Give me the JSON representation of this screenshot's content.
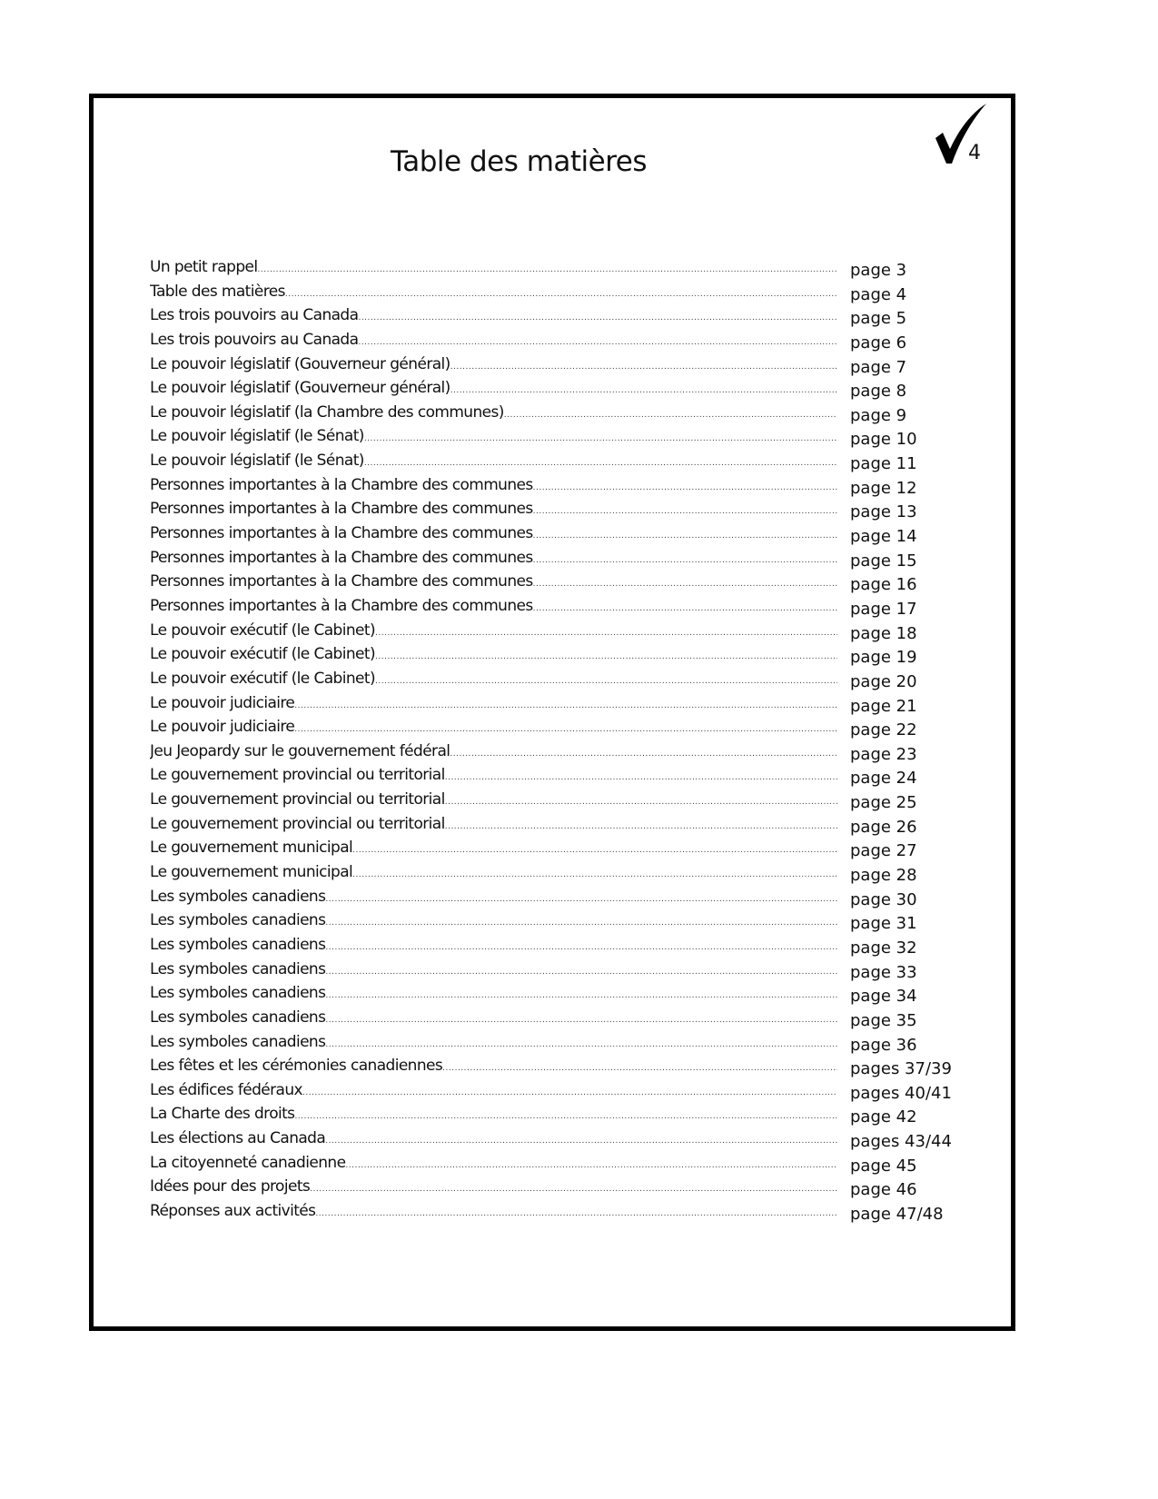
{
  "title": "Table des matières",
  "page_number": "4",
  "entries": [
    {
      "label": "Un petit rappel",
      "page": "page 3"
    },
    {
      "label": "Table des matières",
      "page": "page 4"
    },
    {
      "label": "Les trois pouvoirs au Canada",
      "page": "page 5"
    },
    {
      "label": "Les trois pouvoirs au Canada",
      "page": "page 6"
    },
    {
      "label": "Le pouvoir législatif (Gouverneur général)",
      "page": "page 7"
    },
    {
      "label": "Le pouvoir législatif (Gouverneur général)",
      "page": "page 8"
    },
    {
      "label": "Le pouvoir législatif (la Chambre des communes)",
      "page": "page 9"
    },
    {
      "label": "Le pouvoir législatif (le Sénat)",
      "page": "page 10"
    },
    {
      "label": "Le pouvoir législatif (le Sénat)",
      "page": "page 11"
    },
    {
      "label": "Personnes importantes à la Chambre des communes",
      "page": "page 12"
    },
    {
      "label": "Personnes importantes à la Chambre des communes",
      "page": "page 13"
    },
    {
      "label": "Personnes importantes à la Chambre des communes",
      "page": "page 14"
    },
    {
      "label": "Personnes importantes à la Chambre des communes",
      "page": "page 15"
    },
    {
      "label": "Personnes importantes à la Chambre des communes",
      "page": "page 16"
    },
    {
      "label": "Personnes importantes à la Chambre des communes",
      "page": "page 17"
    },
    {
      "label": "Le pouvoir exécutif (le Cabinet)",
      "page": "page 18"
    },
    {
      "label": "Le pouvoir exécutif (le Cabinet)",
      "page": "page 19"
    },
    {
      "label": "Le pouvoir exécutif (le Cabinet)",
      "page": "page 20"
    },
    {
      "label": "Le pouvoir judiciaire",
      "page": "page 21"
    },
    {
      "label": "Le pouvoir judiciaire",
      "page": "page 22"
    },
    {
      "label": "Jeu Jeopardy sur le gouvernement fédéral",
      "page": "page 23"
    },
    {
      "label": "Le gouvernement provincial ou territorial",
      "page": "page 24"
    },
    {
      "label": "Le gouvernement provincial ou territorial",
      "page": "page 25"
    },
    {
      "label": "Le gouvernement provincial ou territorial",
      "page": "page 26"
    },
    {
      "label": "Le gouvernement municipal",
      "page": "page 27"
    },
    {
      "label": "Le gouvernement municipal",
      "page": "page 28"
    },
    {
      "label": "Les symboles canadiens",
      "page": "page 30"
    },
    {
      "label": "Les symboles canadiens",
      "page": "page 31"
    },
    {
      "label": "Les symboles canadiens",
      "page": "page 32"
    },
    {
      "label": "Les symboles canadiens",
      "page": "page 33"
    },
    {
      "label": "Les symboles canadiens",
      "page": "page 34"
    },
    {
      "label": "Les symboles canadiens",
      "page": "page 35"
    },
    {
      "label": "Les symboles canadiens",
      "page": "page 36"
    },
    {
      "label": "Les fêtes et les cérémonies canadiennes",
      "page": "pages 37/39"
    },
    {
      "label": "Les édifices fédéraux",
      "page": "pages 40/41"
    },
    {
      "label": "La Charte des droits",
      "page": "page 42"
    },
    {
      "label": "Les élections au Canada",
      "page": "pages 43/44"
    },
    {
      "label": "La citoyenneté canadienne",
      "page": "page 45"
    },
    {
      "label": "Idées pour des projets",
      "page": "page 46"
    },
    {
      "label": "Réponses aux activités",
      "page": "page 47/48"
    }
  ]
}
